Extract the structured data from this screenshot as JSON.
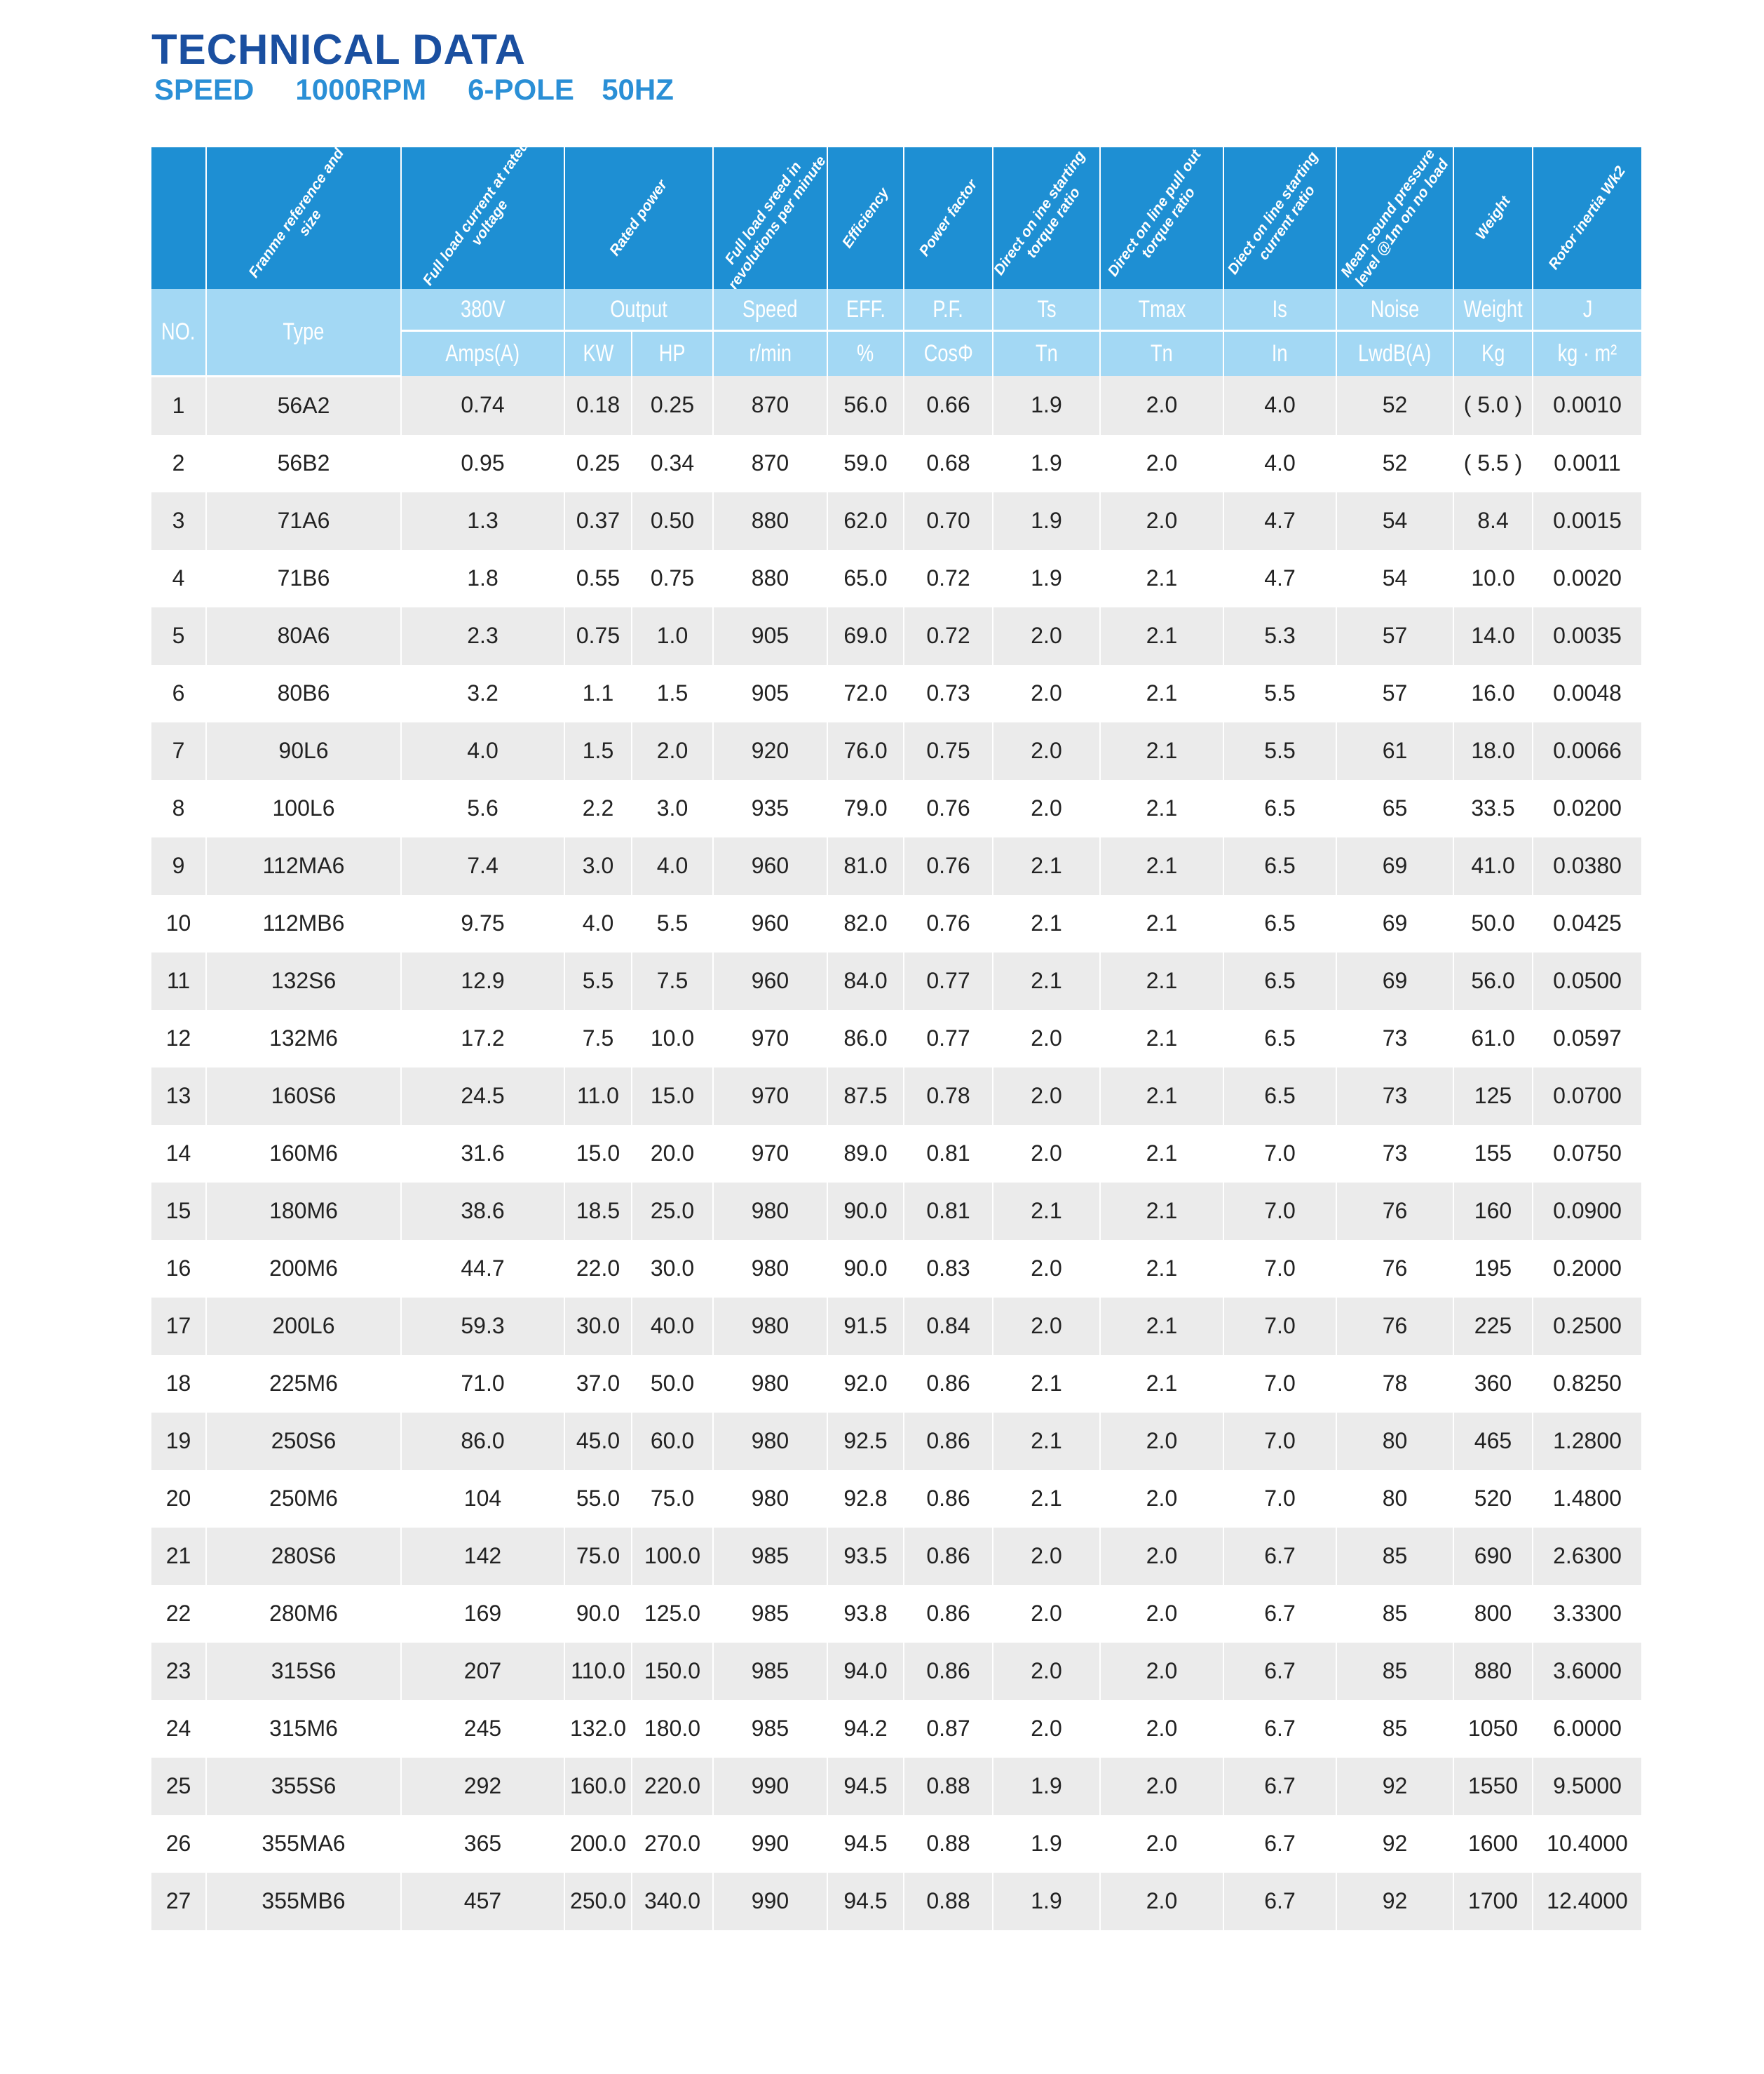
{
  "title": "TECHNICAL DATA",
  "subtitle": "SPEED   1000RPM   6-POLE  50HZ",
  "colors": {
    "title": "#1a4fa0",
    "subtitle": "#2a8fd6",
    "header_dark": "#1e8fd3",
    "header_light": "#a3d8f4",
    "row_alt": "#ebebeb"
  },
  "header": {
    "descriptions": [
      "",
      "Franme reference and size",
      "Full load current at rated voltage",
      "Rated power",
      "Full load sreed in revolutions per minute",
      "Efficiency",
      "Power factor",
      "Direct on ine starting torque ratio",
      "Direct on line pull out torque ratio",
      "Diect on line starting current ratio",
      "Mean sound pressure level @1m on no load",
      "Weight",
      "Rotor inertia Wk2"
    ],
    "no": "NO.",
    "type": "Type",
    "row1": [
      "380V",
      "Output",
      "Speed",
      "EFF.",
      "P.F.",
      "Ts",
      "Tmax",
      "Is",
      "Noise",
      "Weight",
      "J"
    ],
    "row2": [
      "Amps(A)",
      "KW",
      "HP",
      "r/min",
      "%",
      "CosΦ",
      "Tn",
      "Tn",
      "In",
      "LwdB(A)",
      "Kg",
      "kg · m²"
    ]
  },
  "rows": [
    [
      "1",
      "56A2",
      "0.74",
      "0.18",
      "0.25",
      "870",
      "56.0",
      "0.66",
      "1.9",
      "2.0",
      "4.0",
      "52",
      "( 5.0 )",
      "0.0010"
    ],
    [
      "2",
      "56B2",
      "0.95",
      "0.25",
      "0.34",
      "870",
      "59.0",
      "0.68",
      "1.9",
      "2.0",
      "4.0",
      "52",
      "( 5.5 )",
      "0.0011"
    ],
    [
      "3",
      "71A6",
      "1.3",
      "0.37",
      "0.50",
      "880",
      "62.0",
      "0.70",
      "1.9",
      "2.0",
      "4.7",
      "54",
      "8.4",
      "0.0015"
    ],
    [
      "4",
      "71B6",
      "1.8",
      "0.55",
      "0.75",
      "880",
      "65.0",
      "0.72",
      "1.9",
      "2.1",
      "4.7",
      "54",
      "10.0",
      "0.0020"
    ],
    [
      "5",
      "80A6",
      "2.3",
      "0.75",
      "1.0",
      "905",
      "69.0",
      "0.72",
      "2.0",
      "2.1",
      "5.3",
      "57",
      "14.0",
      "0.0035"
    ],
    [
      "6",
      "80B6",
      "3.2",
      "1.1",
      "1.5",
      "905",
      "72.0",
      "0.73",
      "2.0",
      "2.1",
      "5.5",
      "57",
      "16.0",
      "0.0048"
    ],
    [
      "7",
      "90L6",
      "4.0",
      "1.5",
      "2.0",
      "920",
      "76.0",
      "0.75",
      "2.0",
      "2.1",
      "5.5",
      "61",
      "18.0",
      "0.0066"
    ],
    [
      "8",
      "100L6",
      "5.6",
      "2.2",
      "3.0",
      "935",
      "79.0",
      "0.76",
      "2.0",
      "2.1",
      "6.5",
      "65",
      "33.5",
      "0.0200"
    ],
    [
      "9",
      "112MA6",
      "7.4",
      "3.0",
      "4.0",
      "960",
      "81.0",
      "0.76",
      "2.1",
      "2.1",
      "6.5",
      "69",
      "41.0",
      "0.0380"
    ],
    [
      "10",
      "112MB6",
      "9.75",
      "4.0",
      "5.5",
      "960",
      "82.0",
      "0.76",
      "2.1",
      "2.1",
      "6.5",
      "69",
      "50.0",
      "0.0425"
    ],
    [
      "11",
      "132S6",
      "12.9",
      "5.5",
      "7.5",
      "960",
      "84.0",
      "0.77",
      "2.1",
      "2.1",
      "6.5",
      "69",
      "56.0",
      "0.0500"
    ],
    [
      "12",
      "132M6",
      "17.2",
      "7.5",
      "10.0",
      "970",
      "86.0",
      "0.77",
      "2.0",
      "2.1",
      "6.5",
      "73",
      "61.0",
      "0.0597"
    ],
    [
      "13",
      "160S6",
      "24.5",
      "11.0",
      "15.0",
      "970",
      "87.5",
      "0.78",
      "2.0",
      "2.1",
      "6.5",
      "73",
      "125",
      "0.0700"
    ],
    [
      "14",
      "160M6",
      "31.6",
      "15.0",
      "20.0",
      "970",
      "89.0",
      "0.81",
      "2.0",
      "2.1",
      "7.0",
      "73",
      "155",
      "0.0750"
    ],
    [
      "15",
      "180M6",
      "38.6",
      "18.5",
      "25.0",
      "980",
      "90.0",
      "0.81",
      "2.1",
      "2.1",
      "7.0",
      "76",
      "160",
      "0.0900"
    ],
    [
      "16",
      "200M6",
      "44.7",
      "22.0",
      "30.0",
      "980",
      "90.0",
      "0.83",
      "2.0",
      "2.1",
      "7.0",
      "76",
      "195",
      "0.2000"
    ],
    [
      "17",
      "200L6",
      "59.3",
      "30.0",
      "40.0",
      "980",
      "91.5",
      "0.84",
      "2.0",
      "2.1",
      "7.0",
      "76",
      "225",
      "0.2500"
    ],
    [
      "18",
      "225M6",
      "71.0",
      "37.0",
      "50.0",
      "980",
      "92.0",
      "0.86",
      "2.1",
      "2.1",
      "7.0",
      "78",
      "360",
      "0.8250"
    ],
    [
      "19",
      "250S6",
      "86.0",
      "45.0",
      "60.0",
      "980",
      "92.5",
      "0.86",
      "2.1",
      "2.0",
      "7.0",
      "80",
      "465",
      "1.2800"
    ],
    [
      "20",
      "250M6",
      "104",
      "55.0",
      "75.0",
      "980",
      "92.8",
      "0.86",
      "2.1",
      "2.0",
      "7.0",
      "80",
      "520",
      "1.4800"
    ],
    [
      "21",
      "280S6",
      "142",
      "75.0",
      "100.0",
      "985",
      "93.5",
      "0.86",
      "2.0",
      "2.0",
      "6.7",
      "85",
      "690",
      "2.6300"
    ],
    [
      "22",
      "280M6",
      "169",
      "90.0",
      "125.0",
      "985",
      "93.8",
      "0.86",
      "2.0",
      "2.0",
      "6.7",
      "85",
      "800",
      "3.3300"
    ],
    [
      "23",
      "315S6",
      "207",
      "110.0",
      "150.0",
      "985",
      "94.0",
      "0.86",
      "2.0",
      "2.0",
      "6.7",
      "85",
      "880",
      "3.6000"
    ],
    [
      "24",
      "315M6",
      "245",
      "132.0",
      "180.0",
      "985",
      "94.2",
      "0.87",
      "2.0",
      "2.0",
      "6.7",
      "85",
      "1050",
      "6.0000"
    ],
    [
      "25",
      "355S6",
      "292",
      "160.0",
      "220.0",
      "990",
      "94.5",
      "0.88",
      "1.9",
      "2.0",
      "6.7",
      "92",
      "1550",
      "9.5000"
    ],
    [
      "26",
      "355MA6",
      "365",
      "200.0",
      "270.0",
      "990",
      "94.5",
      "0.88",
      "1.9",
      "2.0",
      "6.7",
      "92",
      "1600",
      "10.4000"
    ],
    [
      "27",
      "355MB6",
      "457",
      "250.0",
      "340.0",
      "990",
      "94.5",
      "0.88",
      "1.9",
      "2.0",
      "6.7",
      "92",
      "1700",
      "12.4000"
    ]
  ]
}
